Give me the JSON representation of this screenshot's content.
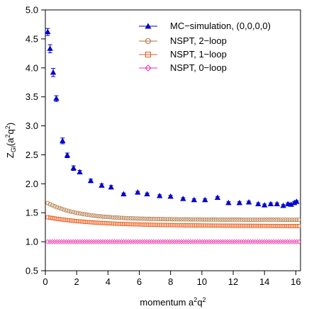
{
  "chart_data": {
    "type": "scatter",
    "title": "",
    "xlabel": {
      "base": "momentum a",
      "sup1": "2",
      "mid": "q",
      "sup2": "2"
    },
    "ylabel": {
      "base": "Z",
      "sub": "Gl",
      "rest": "(a",
      "sup1": "2",
      "mid": "q",
      "sup2": "2",
      "close": ")"
    },
    "xlim": [
      0,
      16.3
    ],
    "ylim": [
      0.5,
      5.0
    ],
    "xticks": [
      "0",
      "2",
      "4",
      "6",
      "8",
      "10",
      "12",
      "14",
      "16"
    ],
    "yticks": [
      "0.5",
      "1.0",
      "1.5",
      "2.0",
      "2.5",
      "3.0",
      "3.5",
      "4.0",
      "4.5",
      "5.0"
    ],
    "legend_position": "top-right",
    "series": [
      {
        "name": "MC−simulation, (0,0,0,0)",
        "marker": "filled-triangle",
        "color": "#0000cc",
        "points": [
          [
            0.15,
            4.62,
            0.06
          ],
          [
            0.3,
            4.33,
            0.07
          ],
          [
            0.5,
            3.92,
            0.07
          ],
          [
            0.7,
            3.47,
            0.05
          ],
          [
            1.1,
            2.74,
            0.05
          ],
          [
            1.4,
            2.49,
            0.04
          ],
          [
            1.8,
            2.27,
            0.04
          ],
          [
            2.2,
            2.2,
            0.03
          ],
          [
            2.9,
            2.05,
            0.03
          ],
          [
            3.6,
            1.97,
            0.03
          ],
          [
            4.2,
            1.94,
            0.03
          ],
          [
            5.0,
            1.82,
            0.02
          ],
          [
            5.9,
            1.85,
            0.02
          ],
          [
            6.5,
            1.82,
            0.02
          ],
          [
            7.3,
            1.79,
            0.02
          ],
          [
            8.0,
            1.78,
            0.02
          ],
          [
            8.8,
            1.74,
            0.02
          ],
          [
            9.5,
            1.72,
            0.02
          ],
          [
            10.2,
            1.72,
            0.02
          ],
          [
            11.0,
            1.76,
            0.02
          ],
          [
            11.7,
            1.67,
            0.02
          ],
          [
            12.4,
            1.67,
            0.02
          ],
          [
            13.0,
            1.68,
            0.02
          ],
          [
            13.6,
            1.65,
            0.02
          ],
          [
            14.0,
            1.63,
            0.02
          ],
          [
            14.4,
            1.65,
            0.02
          ],
          [
            14.8,
            1.65,
            0.02
          ],
          [
            15.2,
            1.62,
            0.02
          ],
          [
            15.5,
            1.65,
            0.02
          ],
          [
            15.7,
            1.64,
            0.02
          ],
          [
            15.9,
            1.67,
            0.02
          ],
          [
            16.05,
            1.69,
            0.02
          ]
        ]
      },
      {
        "name": "NSPT, 2−loop",
        "marker": "open-circle",
        "color": "#b0703a",
        "curve": {
          "x_start": 0.15,
          "x_end": 16.2,
          "n": 110,
          "a": 1.37,
          "b": 0.3,
          "k": 0.5,
          "b2": 0.02,
          "k2": 0.05
        }
      },
      {
        "name": "NSPT, 1−loop",
        "marker": "open-square",
        "color": "#ee5511",
        "curve": {
          "x_start": 0.15,
          "x_end": 16.2,
          "n": 110,
          "a": 1.26,
          "b": 0.14,
          "k": 0.35,
          "b2": 0.03,
          "k2": 0.06
        }
      },
      {
        "name": "NSPT, 0−loop",
        "marker": "open-diamond",
        "color": "#ee33aa",
        "curve": {
          "x_start": 0.15,
          "x_end": 16.2,
          "n": 110,
          "a": 1.0,
          "b": 0.0,
          "k": 1.0,
          "b2": 0.0,
          "k2": 1.0
        }
      }
    ]
  }
}
